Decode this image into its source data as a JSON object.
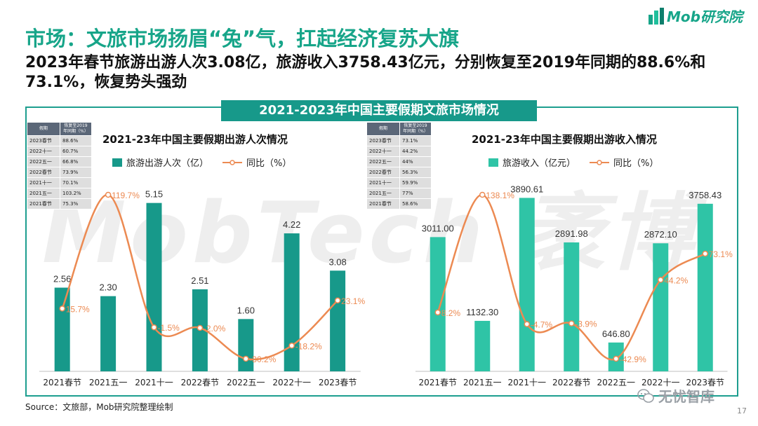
{
  "header": {
    "title": "市场：文旅市场扬眉“兔”气，扛起经济复苏大旗",
    "subtitle": "2023年春节旅游出游人次3.08亿，旅游收入3758.43亿元，分别恢复至2019年同期的88.6%和73.1%，恢复势头强劲",
    "logo_text": "Mob研究院"
  },
  "banner": {
    "text": "2021-2023年中国主要假期文旅市场情况"
  },
  "watermark": {
    "text": "MobTech 袤博"
  },
  "colors": {
    "teal_dark": "#17998a",
    "teal_light": "#2fc4a6",
    "line_orange": "#ec8a52",
    "title_green": "#17a589"
  },
  "tables": [
    {
      "header_col1": "假期",
      "header_col2": "恢复至2019年同期（%）",
      "rows": [
        {
          "period": "2023春节",
          "value": "88.6%"
        },
        {
          "period": "2022十一",
          "value": "60.7%"
        },
        {
          "period": "2022五一",
          "value": "66.8%"
        },
        {
          "period": "2022春节",
          "value": "73.9%"
        },
        {
          "period": "2021十一",
          "value": "70.1%"
        },
        {
          "period": "2021五一",
          "value": "103.2%"
        },
        {
          "period": "2021春节",
          "value": "75.3%"
        }
      ]
    },
    {
      "header_col1": "假期",
      "header_col2": "恢复至2019年同期（%）",
      "rows": [
        {
          "period": "2023春节",
          "value": "73.1%"
        },
        {
          "period": "2022十一",
          "value": "44.2%"
        },
        {
          "period": "2022五一",
          "value": "44%"
        },
        {
          "period": "2022春节",
          "value": "56.3%"
        },
        {
          "period": "2021十一",
          "value": "59.9%"
        },
        {
          "period": "2021五一",
          "value": "77%"
        },
        {
          "period": "2021春节",
          "value": "58.6%"
        }
      ]
    }
  ],
  "chart_data": [
    {
      "type": "bar",
      "title": "2021-23年中国主要假期出游人次情况",
      "categories": [
        "2021春节",
        "2021五一",
        "2021十一",
        "2022春节",
        "2022五一",
        "2022十一",
        "2023春节"
      ],
      "series": [
        {
          "name": "旅游出游人次（亿）",
          "kind": "bar",
          "values": [
            2.56,
            2.3,
            5.15,
            2.51,
            1.6,
            4.22,
            3.08
          ],
          "labels": [
            "2.56",
            "2.30",
            "5.15",
            "2.51",
            "1.60",
            "4.22",
            "3.08"
          ]
        },
        {
          "name": "同比（%）",
          "kind": "line",
          "values": [
            15.7,
            119.7,
            -1.5,
            -2.0,
            -30.2,
            -18.2,
            23.1
          ],
          "labels": [
            "15.7%",
            "119.7%",
            "-1.5%",
            "-2.0%",
            "-30.2%",
            "-18.2%",
            "23.1%"
          ]
        }
      ],
      "bar_color": "#17998a",
      "line_color": "#ec8a52"
    },
    {
      "type": "bar",
      "title": "2021-23年中国主要假期出游收入情况",
      "categories": [
        "2021春节",
        "2021五一",
        "2021十一",
        "2022春节",
        "2022五一",
        "2022十一",
        "2023春节"
      ],
      "series": [
        {
          "name": "旅游收入（亿元）",
          "kind": "bar",
          "values": [
            3011.0,
            1132.3,
            3890.61,
            2891.98,
            646.8,
            2872.1,
            3758.43
          ],
          "labels": [
            "3011.00",
            "1132.30",
            "3890.61",
            "2891.98",
            "646.80",
            "2872.10",
            "3758.43"
          ]
        },
        {
          "name": "同比（%）",
          "kind": "line",
          "values": [
            8.2,
            138.1,
            -4.7,
            -3.9,
            -42.9,
            44.2,
            73.1
          ],
          "labels": [
            "8.2%",
            "138.1%",
            "-4.7%",
            "-3.9%",
            "-42.9%",
            "44.2%",
            "73.1%"
          ]
        }
      ],
      "bar_color": "#2fc4a6",
      "line_color": "#ec8a52"
    }
  ],
  "footer": {
    "source": "Source：文旅部，Mob研究院整理绘制",
    "wechat": "无忧智库",
    "page": "17"
  }
}
